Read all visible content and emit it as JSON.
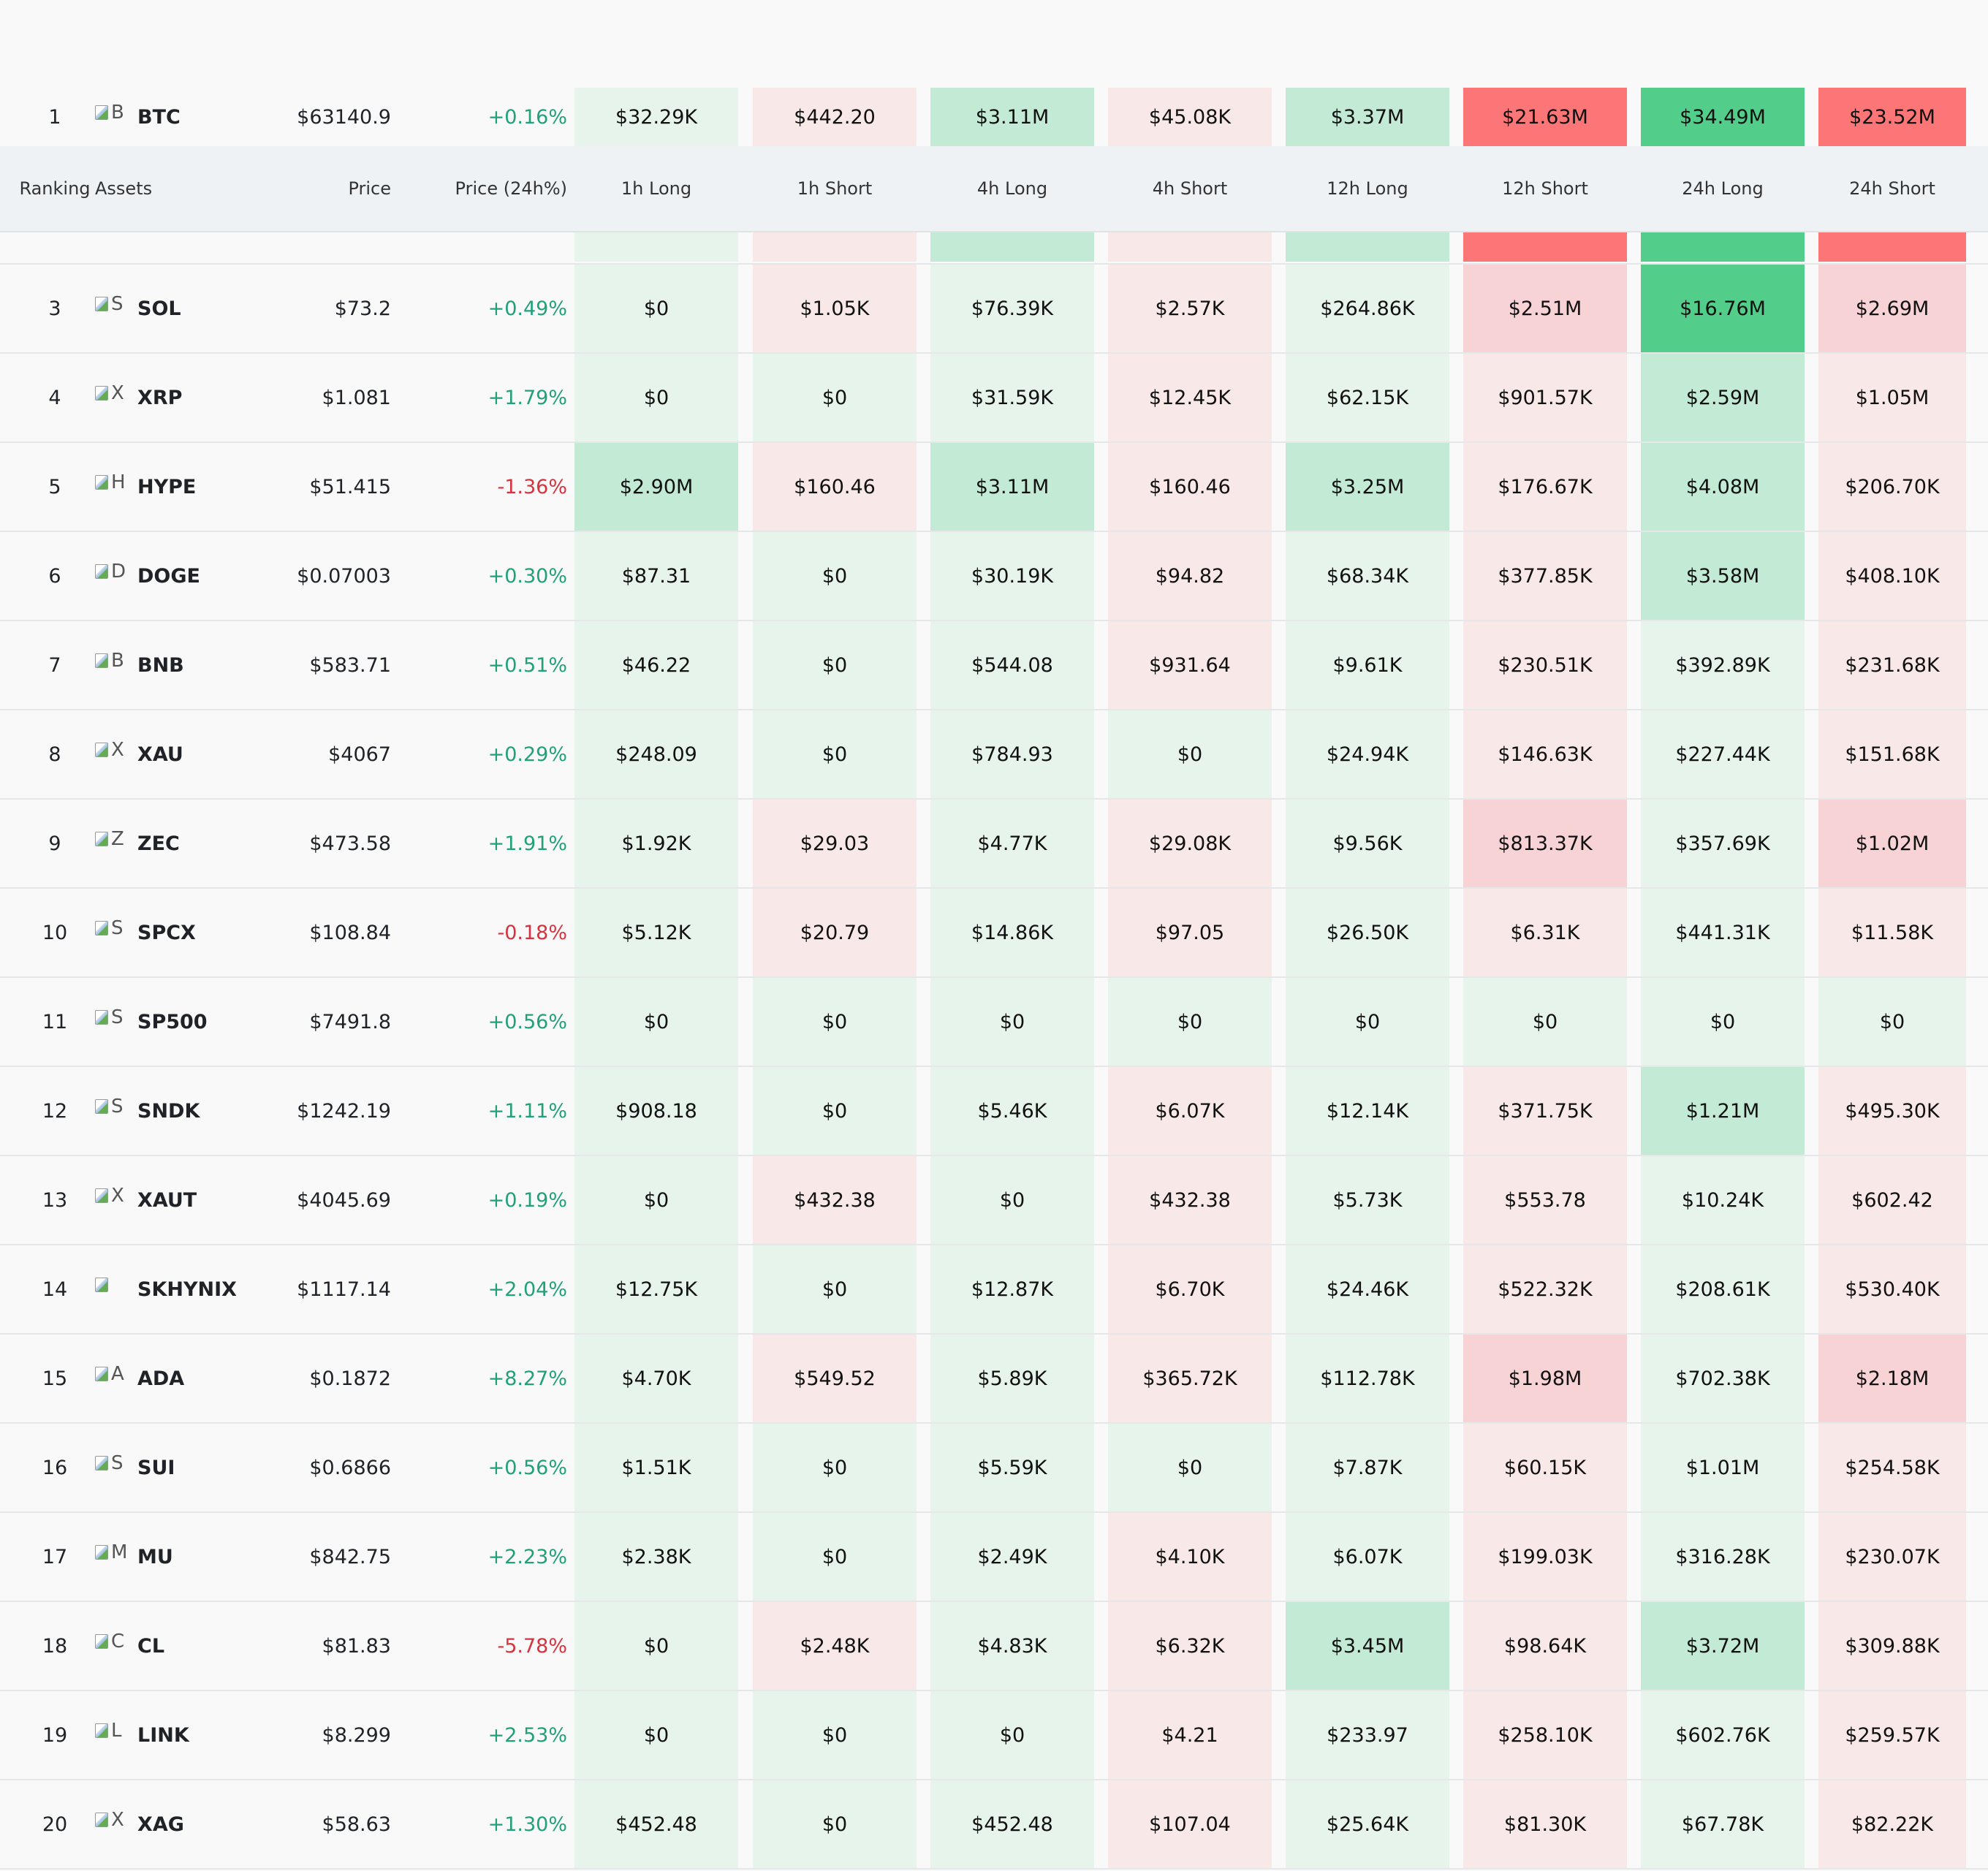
{
  "columns": {
    "ranking": "Ranking",
    "assets": "Assets",
    "price": "Price",
    "price_change": "Price (24h%)",
    "h1_long": "1h Long",
    "h1_short": "1h Short",
    "h4_long": "4h Long",
    "h4_short": "4h Short",
    "h12_long": "12h Long",
    "h12_short": "12h Short",
    "h24_long": "24h Long",
    "h24_short": "24h Short"
  },
  "colors": {
    "positive": "#21a179",
    "negative": "#d6333f",
    "long_light": "#e7f4ec",
    "long_mid": "#c3ead4",
    "long_strong": "#52cd8a",
    "short_light": "#f9e8e8",
    "short_mid": "#f8d3d5",
    "short_strong": "#fd7677"
  },
  "rows": [
    {
      "rank": "1",
      "icon": "B",
      "symbol": "BTC",
      "price": "$63140.9",
      "change": "+0.16%",
      "dir": "up",
      "values": [
        "$32.29K",
        "$442.20",
        "$3.11M",
        "$45.08K",
        "$3.37M",
        "$21.63M",
        "$34.49M",
        "$23.52M"
      ],
      "levels": [
        "L1",
        "S1",
        "L2",
        "S1",
        "L2",
        "S3",
        "L3",
        "S3"
      ]
    },
    {
      "rank": "3",
      "icon": "S",
      "symbol": "SOL",
      "price": "$73.2",
      "change": "+0.49%",
      "dir": "up",
      "values": [
        "$0",
        "$1.05K",
        "$76.39K",
        "$2.57K",
        "$264.86K",
        "$2.51M",
        "$16.76M",
        "$2.69M"
      ],
      "levels": [
        "L1",
        "S1",
        "L1",
        "S1",
        "L1",
        "S2",
        "L3",
        "S2"
      ]
    },
    {
      "rank": "4",
      "icon": "X",
      "symbol": "XRP",
      "price": "$1.081",
      "change": "+1.79%",
      "dir": "up",
      "values": [
        "$0",
        "$0",
        "$31.59K",
        "$12.45K",
        "$62.15K",
        "$901.57K",
        "$2.59M",
        "$1.05M"
      ],
      "levels": [
        "L1",
        "L1",
        "L1",
        "S1",
        "L1",
        "S1",
        "L2",
        "S1"
      ]
    },
    {
      "rank": "5",
      "icon": "H",
      "symbol": "HYPE",
      "price": "$51.415",
      "change": "-1.36%",
      "dir": "down",
      "values": [
        "$2.90M",
        "$160.46",
        "$3.11M",
        "$160.46",
        "$3.25M",
        "$176.67K",
        "$4.08M",
        "$206.70K"
      ],
      "levels": [
        "L2",
        "S1",
        "L2",
        "S1",
        "L2",
        "S1",
        "L2",
        "S1"
      ]
    },
    {
      "rank": "6",
      "icon": "D",
      "symbol": "DOGE",
      "price": "$0.07003",
      "change": "+0.30%",
      "dir": "up",
      "values": [
        "$87.31",
        "$0",
        "$30.19K",
        "$94.82",
        "$68.34K",
        "$377.85K",
        "$3.58M",
        "$408.10K"
      ],
      "levels": [
        "L1",
        "L1",
        "L1",
        "S1",
        "L1",
        "S1",
        "L2",
        "S1"
      ]
    },
    {
      "rank": "7",
      "icon": "B",
      "symbol": "BNB",
      "price": "$583.71",
      "change": "+0.51%",
      "dir": "up",
      "values": [
        "$46.22",
        "$0",
        "$544.08",
        "$931.64",
        "$9.61K",
        "$230.51K",
        "$392.89K",
        "$231.68K"
      ],
      "levels": [
        "L1",
        "L1",
        "L1",
        "S1",
        "L1",
        "S1",
        "L1",
        "S1"
      ]
    },
    {
      "rank": "8",
      "icon": "X",
      "symbol": "XAU",
      "price": "$4067",
      "change": "+0.29%",
      "dir": "up",
      "values": [
        "$248.09",
        "$0",
        "$784.93",
        "$0",
        "$24.94K",
        "$146.63K",
        "$227.44K",
        "$151.68K"
      ],
      "levels": [
        "L1",
        "L1",
        "L1",
        "L1",
        "L1",
        "S1",
        "L1",
        "S1"
      ]
    },
    {
      "rank": "9",
      "icon": "Z",
      "symbol": "ZEC",
      "price": "$473.58",
      "change": "+1.91%",
      "dir": "up",
      "values": [
        "$1.92K",
        "$29.03",
        "$4.77K",
        "$29.08K",
        "$9.56K",
        "$813.37K",
        "$357.69K",
        "$1.02M"
      ],
      "levels": [
        "L1",
        "S1",
        "L1",
        "S1",
        "L1",
        "S2",
        "L1",
        "S2"
      ]
    },
    {
      "rank": "10",
      "icon": "S",
      "symbol": "SPCX",
      "price": "$108.84",
      "change": "-0.18%",
      "dir": "down",
      "values": [
        "$5.12K",
        "$20.79",
        "$14.86K",
        "$97.05",
        "$26.50K",
        "$6.31K",
        "$441.31K",
        "$11.58K"
      ],
      "levels": [
        "L1",
        "S1",
        "L1",
        "S1",
        "L1",
        "S1",
        "L1",
        "S1"
      ]
    },
    {
      "rank": "11",
      "icon": "S",
      "symbol": "SP500",
      "price": "$7491.8",
      "change": "+0.56%",
      "dir": "up",
      "values": [
        "$0",
        "$0",
        "$0",
        "$0",
        "$0",
        "$0",
        "$0",
        "$0"
      ],
      "levels": [
        "L1",
        "L1",
        "L1",
        "L1",
        "L1",
        "L1",
        "L1",
        "L1"
      ]
    },
    {
      "rank": "12",
      "icon": "S",
      "symbol": "SNDK",
      "price": "$1242.19",
      "change": "+1.11%",
      "dir": "up",
      "values": [
        "$908.18",
        "$0",
        "$5.46K",
        "$6.07K",
        "$12.14K",
        "$371.75K",
        "$1.21M",
        "$495.30K"
      ],
      "levels": [
        "L1",
        "L1",
        "L1",
        "S1",
        "L1",
        "S1",
        "L2",
        "S1"
      ]
    },
    {
      "rank": "13",
      "icon": "X",
      "symbol": "XAUT",
      "price": "$4045.69",
      "change": "+0.19%",
      "dir": "up",
      "values": [
        "$0",
        "$432.38",
        "$0",
        "$432.38",
        "$5.73K",
        "$553.78",
        "$10.24K",
        "$602.42"
      ],
      "levels": [
        "L1",
        "S1",
        "L1",
        "S1",
        "L1",
        "S1",
        "L1",
        "S1"
      ]
    },
    {
      "rank": "14",
      "icon": "",
      "symbol": "SKHYNIX",
      "price": "$1117.14",
      "change": "+2.04%",
      "dir": "up",
      "values": [
        "$12.75K",
        "$0",
        "$12.87K",
        "$6.70K",
        "$24.46K",
        "$522.32K",
        "$208.61K",
        "$530.40K"
      ],
      "levels": [
        "L1",
        "L1",
        "L1",
        "S1",
        "L1",
        "S1",
        "L1",
        "S1"
      ]
    },
    {
      "rank": "15",
      "icon": "A",
      "symbol": "ADA",
      "price": "$0.1872",
      "change": "+8.27%",
      "dir": "up",
      "values": [
        "$4.70K",
        "$549.52",
        "$5.89K",
        "$365.72K",
        "$112.78K",
        "$1.98M",
        "$702.38K",
        "$2.18M"
      ],
      "levels": [
        "L1",
        "S1",
        "L1",
        "S1",
        "L1",
        "S2",
        "L1",
        "S2"
      ]
    },
    {
      "rank": "16",
      "icon": "S",
      "symbol": "SUI",
      "price": "$0.6866",
      "change": "+0.56%",
      "dir": "up",
      "values": [
        "$1.51K",
        "$0",
        "$5.59K",
        "$0",
        "$7.87K",
        "$60.15K",
        "$1.01M",
        "$254.58K"
      ],
      "levels": [
        "L1",
        "L1",
        "L1",
        "L1",
        "L1",
        "S1",
        "L1",
        "S1"
      ]
    },
    {
      "rank": "17",
      "icon": "M",
      "symbol": "MU",
      "price": "$842.75",
      "change": "+2.23%",
      "dir": "up",
      "values": [
        "$2.38K",
        "$0",
        "$2.49K",
        "$4.10K",
        "$6.07K",
        "$199.03K",
        "$316.28K",
        "$230.07K"
      ],
      "levels": [
        "L1",
        "L1",
        "L1",
        "S1",
        "L1",
        "S1",
        "L1",
        "S1"
      ]
    },
    {
      "rank": "18",
      "icon": "C",
      "symbol": "CL",
      "price": "$81.83",
      "change": "-5.78%",
      "dir": "down",
      "values": [
        "$0",
        "$2.48K",
        "$4.83K",
        "$6.32K",
        "$3.45M",
        "$98.64K",
        "$3.72M",
        "$309.88K"
      ],
      "levels": [
        "L1",
        "S1",
        "L1",
        "S1",
        "L2",
        "S1",
        "L2",
        "S1"
      ]
    },
    {
      "rank": "19",
      "icon": "L",
      "symbol": "LINK",
      "price": "$8.299",
      "change": "+2.53%",
      "dir": "up",
      "values": [
        "$0",
        "$0",
        "$0",
        "$4.21",
        "$233.97",
        "$258.10K",
        "$602.76K",
        "$259.57K"
      ],
      "levels": [
        "L1",
        "L1",
        "L1",
        "S1",
        "L1",
        "S1",
        "L1",
        "S1"
      ]
    },
    {
      "rank": "20",
      "icon": "X",
      "symbol": "XAG",
      "price": "$58.63",
      "change": "+1.30%",
      "dir": "up",
      "values": [
        "$452.48",
        "$0",
        "$452.48",
        "$107.04",
        "$25.64K",
        "$81.30K",
        "$67.78K",
        "$82.22K"
      ],
      "levels": [
        "L1",
        "L1",
        "L1",
        "S1",
        "L1",
        "S1",
        "L1",
        "S1"
      ]
    }
  ]
}
